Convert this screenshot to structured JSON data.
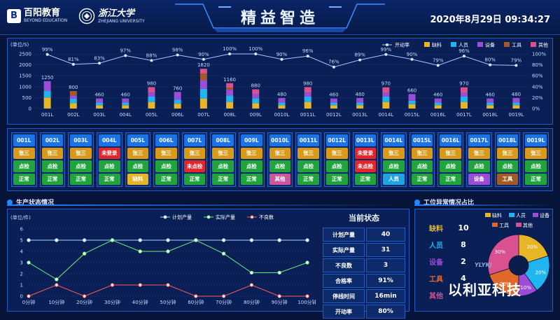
{
  "header": {
    "brand_name": "百阳教育",
    "brand_sub": "BEYOND EDUCATION",
    "univ_name": "浙江大学",
    "univ_sub": "ZHEJIANG UNIVERSITY",
    "title": "精益智造",
    "datetime": "2020年8月29日 09:34:27"
  },
  "colors": {
    "rate": "#a5c8ff",
    "material": "#e6b626",
    "person": "#1fb6f0",
    "equipment": "#9b4dd8",
    "tool": "#a35a24",
    "other": "#d9518f",
    "plan": "#a6d8ff",
    "actual": "#6cf07a",
    "defect": "#ff5a5a"
  },
  "top_chart": {
    "chart_data": {
      "type": "bar",
      "ylabel": "(单位/S)",
      "ylim": [
        0,
        2500
      ],
      "y2lim": [
        0,
        1
      ],
      "yticks": [
        "0",
        "500",
        "1000",
        "1500",
        "2000",
        "2500"
      ],
      "y2ticks": [
        "0%",
        "20%",
        "40%",
        "60%",
        "80%",
        "100%"
      ],
      "categories": [
        "001L",
        "002L",
        "003L",
        "004L",
        "005L",
        "006L",
        "007L",
        "008L",
        "009L",
        "0010L",
        "0011L",
        "0012L",
        "0013L",
        "0014L",
        "0015L",
        "0016L",
        "0017L",
        "0018L",
        "0019L"
      ],
      "totals": [
        1250,
        800,
        460,
        460,
        980,
        760,
        1820,
        1160,
        880,
        480,
        980,
        460,
        480,
        970,
        660,
        460,
        970,
        460,
        480
      ],
      "total_labels": [
        "1250",
        "800",
        "460",
        "460",
        "980",
        "760",
        "1820",
        "1160",
        "880",
        "480",
        "980",
        "460",
        "480",
        "970",
        "660",
        "460",
        "970",
        "460",
        "480"
      ],
      "series": [
        {
          "name": "缺料",
          "values": [
            500,
            250,
            150,
            150,
            300,
            220,
            450,
            300,
            250,
            150,
            300,
            150,
            150,
            300,
            200,
            150,
            300,
            150,
            150
          ]
        },
        {
          "name": "人员",
          "values": [
            300,
            200,
            120,
            120,
            250,
            180,
            450,
            300,
            220,
            120,
            250,
            120,
            120,
            250,
            160,
            120,
            250,
            120,
            120
          ]
        },
        {
          "name": "设备",
          "values": [
            450,
            150,
            190,
            190,
            180,
            360,
            400,
            260,
            200,
            210,
            180,
            190,
            210,
            170,
            300,
            190,
            170,
            190,
            210
          ]
        },
        {
          "name": "工具",
          "values": [
            0,
            200,
            0,
            0,
            0,
            0,
            300,
            100,
            0,
            0,
            0,
            0,
            0,
            0,
            0,
            0,
            0,
            0,
            0
          ]
        },
        {
          "name": "其他",
          "values": [
            0,
            0,
            0,
            0,
            250,
            0,
            220,
            200,
            210,
            0,
            250,
            0,
            0,
            250,
            0,
            0,
            250,
            0,
            0
          ]
        }
      ],
      "rate_name": "开动率",
      "rate": [
        99,
        81,
        83,
        97,
        88,
        98,
        90,
        100,
        100,
        90,
        96,
        76,
        89,
        99,
        90,
        79,
        96,
        80,
        79
      ],
      "rate_labels": [
        "99%",
        "81%",
        "83%",
        "97%",
        "88%",
        "98%",
        "90%",
        "100%",
        "100%",
        "90%",
        "96%",
        "76%",
        "89%",
        "99%",
        "90%",
        "79%",
        "96%",
        "80%",
        "79%"
      ]
    }
  },
  "stations": [
    {
      "code": "001L",
      "person": "张三",
      "check": "点检",
      "check_ok": true,
      "status": "正常",
      "status_type": "normal"
    },
    {
      "code": "002L",
      "person": "张三",
      "check": "点检",
      "check_ok": true,
      "status": "正常",
      "status_type": "normal"
    },
    {
      "code": "003L",
      "person": "张三",
      "check": "点检",
      "check_ok": true,
      "status": "正常",
      "status_type": "normal"
    },
    {
      "code": "004L",
      "person": "未登录",
      "person_alert": true,
      "check": "点检",
      "check_ok": true,
      "status": "正常",
      "status_type": "normal"
    },
    {
      "code": "005L",
      "person": "张三",
      "check": "点检",
      "check_ok": true,
      "status": "缺料",
      "status_type": "material"
    },
    {
      "code": "006L",
      "person": "张三",
      "check": "点检",
      "check_ok": true,
      "status": "正常",
      "status_type": "normal"
    },
    {
      "code": "007L",
      "person": "张三",
      "check": "未点检",
      "check_ok": false,
      "status": "正常",
      "status_type": "normal"
    },
    {
      "code": "008L",
      "person": "张三",
      "check": "点检",
      "check_ok": true,
      "status": "正常",
      "status_type": "normal"
    },
    {
      "code": "009L",
      "person": "张三",
      "check": "点检",
      "check_ok": true,
      "status": "正常",
      "status_type": "normal"
    },
    {
      "code": "0010L",
      "person": "张三",
      "check": "点检",
      "check_ok": true,
      "status": "其他",
      "status_type": "other"
    },
    {
      "code": "0011L",
      "person": "张三",
      "check": "点检",
      "check_ok": true,
      "status": "正常",
      "status_type": "normal"
    },
    {
      "code": "0012L",
      "person": "张三",
      "check": "点检",
      "check_ok": true,
      "status": "正常",
      "status_type": "normal"
    },
    {
      "code": "0013L",
      "person": "未登录",
      "person_alert": true,
      "check": "未点检",
      "check_ok": false,
      "status": "正常",
      "status_type": "normal"
    },
    {
      "code": "0014L",
      "person": "张三",
      "check": "点检",
      "check_ok": true,
      "status": "人员",
      "status_type": "person"
    },
    {
      "code": "0015L",
      "person": "张三",
      "check": "点检",
      "check_ok": true,
      "status": "正常",
      "status_type": "normal"
    },
    {
      "code": "0016L",
      "person": "张三",
      "check": "点检",
      "check_ok": true,
      "status": "正常",
      "status_type": "normal"
    },
    {
      "code": "0017L",
      "person": "张三",
      "check": "点检",
      "check_ok": true,
      "status": "设备",
      "status_type": "equipment"
    },
    {
      "code": "0018L",
      "person": "张三",
      "check": "点检",
      "check_ok": true,
      "status": "工具",
      "status_type": "tool"
    },
    {
      "code": "0019L",
      "person": "张三",
      "check": "点检",
      "check_ok": true,
      "status": "正常",
      "status_type": "normal"
    }
  ],
  "production": {
    "section_title": "生产状态情况",
    "chart_data": {
      "type": "line",
      "ylabel": "(单位/件)",
      "ylim": [
        0,
        6
      ],
      "yticks": [
        "0",
        "1",
        "2",
        "3",
        "4",
        "5",
        "6"
      ],
      "categories": [
        "0分钟",
        "10分钟",
        "20分钟",
        "30分钟",
        "40分钟",
        "50分钟",
        "60分钟",
        "70分钟",
        "80分钟",
        "90分钟",
        "100分钟"
      ],
      "series": [
        {
          "name": "计划产量",
          "values": [
            5,
            5,
            5,
            5,
            5,
            5,
            5,
            5,
            5,
            5,
            5
          ]
        },
        {
          "name": "实际产量",
          "values": [
            3,
            1.5,
            3.8,
            5,
            4,
            4,
            5,
            3.8,
            2.1,
            2.1,
            3
          ]
        },
        {
          "name": "不良数",
          "values": [
            0,
            1,
            0,
            1,
            1,
            1,
            0,
            0,
            1,
            0,
            0
          ]
        }
      ]
    }
  },
  "current_status": {
    "title": "当前状态",
    "rows": [
      {
        "label": "计划产量",
        "value": "40"
      },
      {
        "label": "实际产量",
        "value": "31"
      },
      {
        "label": "不良数",
        "value": "3"
      },
      {
        "label": "合格率",
        "value": "91%"
      },
      {
        "label": "停线时间",
        "value": "16min"
      },
      {
        "label": "开动率",
        "value": "80%"
      }
    ]
  },
  "abnormal": {
    "section_title": "工位异常情况占比",
    "items": [
      {
        "label": "缺料",
        "value": "10",
        "color": "#e6b626"
      },
      {
        "label": "人员",
        "value": "8",
        "color": "#1fb6f0"
      },
      {
        "label": "设备",
        "value": "2",
        "color": "#9b4dd8"
      },
      {
        "label": "工具",
        "value": "4",
        "color": "#e0682a"
      },
      {
        "label": "其他",
        "value": "",
        "color": "#d9518f"
      }
    ],
    "chart_data": {
      "type": "pie",
      "labels": [
        "缺料",
        "人员",
        "设备",
        "工具",
        "其他"
      ],
      "values": [
        20,
        20,
        10,
        20,
        30
      ],
      "value_labels": [
        "20%",
        "20%",
        "10%",
        "20%",
        "30%"
      ]
    }
  },
  "watermark": {
    "text": "以利亚科技",
    "logo": "YLYKJ"
  }
}
